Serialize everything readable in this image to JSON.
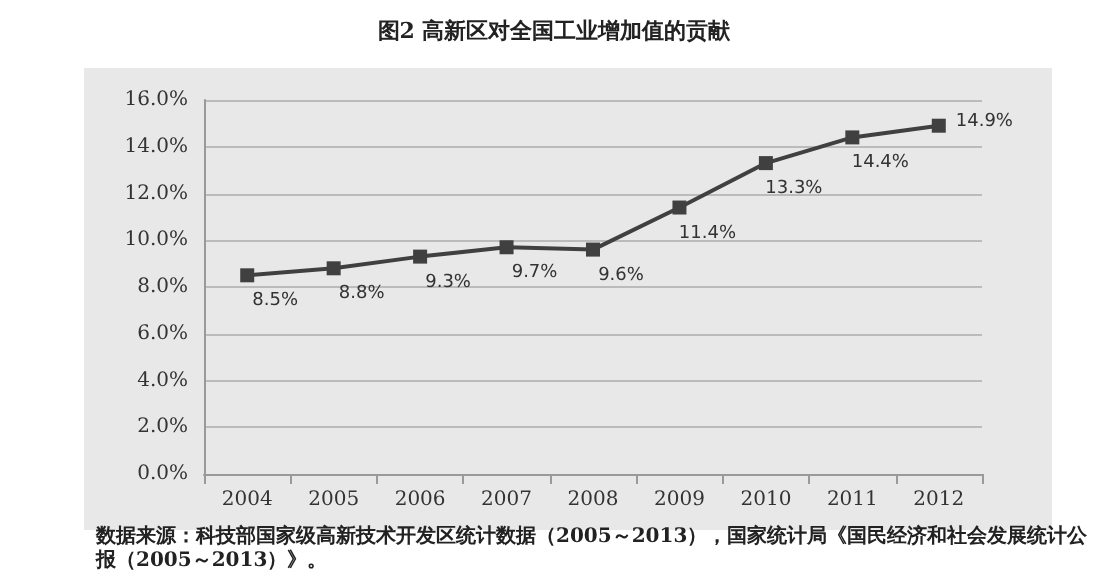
{
  "chart_data": {
    "type": "line",
    "title": "图2  高新区对全国工业增加值的贡献",
    "categories": [
      "2004",
      "2005",
      "2006",
      "2007",
      "2008",
      "2009",
      "2010",
      "2011",
      "2012"
    ],
    "series": [
      {
        "color": "#404040",
        "values": [
          8.5,
          8.8,
          9.3,
          9.7,
          9.6,
          11.4,
          13.3,
          14.4,
          14.9
        ],
        "value_labels": [
          "8.5%",
          "8.8%",
          "9.3%",
          "9.7%",
          "9.6%",
          "11.4%",
          "13.3%",
          "14.4%",
          "14.9%"
        ]
      }
    ],
    "ylim": [
      0,
      16
    ],
    "yticks": [
      {
        "value": 0,
        "label": "0.0%"
      },
      {
        "value": 2,
        "label": "2.0%"
      },
      {
        "value": 4,
        "label": "4.0%"
      },
      {
        "value": 6,
        "label": "6.0%"
      },
      {
        "value": 8,
        "label": "8.0%"
      },
      {
        "value": 10,
        "label": "10.0%"
      },
      {
        "value": 12,
        "label": "12.0%"
      },
      {
        "value": 14,
        "label": "14.0%"
      },
      {
        "value": 16,
        "label": "16.0%"
      }
    ],
    "grid": "y",
    "marker": "square",
    "line_style": "solid",
    "annotations": [
      "数据来源：科技部国家级高新技术开发区统计数据（2005～2013），国家统计局《国民经济和社会发展统计公报（2005～2013）》。"
    ]
  }
}
